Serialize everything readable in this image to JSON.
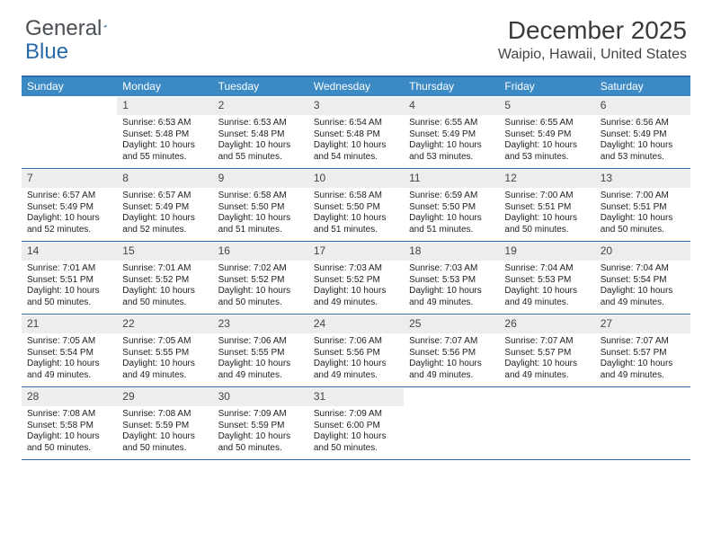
{
  "logo": {
    "text_general": "General",
    "text_blue": "Blue",
    "triangle_color": "#2d6ca8"
  },
  "title": {
    "month": "December 2025",
    "location": "Waipio, Hawaii, United States"
  },
  "colors": {
    "header_bg": "#3b8ac4",
    "border": "#2d6ca8",
    "daynum_bg": "#eceded",
    "text": "#333333",
    "background": "#ffffff"
  },
  "day_labels": [
    "Sunday",
    "Monday",
    "Tuesday",
    "Wednesday",
    "Thursday",
    "Friday",
    "Saturday"
  ],
  "weeks": [
    [
      {
        "empty": true
      },
      {
        "num": "1",
        "sunrise": "Sunrise: 6:53 AM",
        "sunset": "Sunset: 5:48 PM",
        "daylight1": "Daylight: 10 hours",
        "daylight2": "and 55 minutes."
      },
      {
        "num": "2",
        "sunrise": "Sunrise: 6:53 AM",
        "sunset": "Sunset: 5:48 PM",
        "daylight1": "Daylight: 10 hours",
        "daylight2": "and 55 minutes."
      },
      {
        "num": "3",
        "sunrise": "Sunrise: 6:54 AM",
        "sunset": "Sunset: 5:48 PM",
        "daylight1": "Daylight: 10 hours",
        "daylight2": "and 54 minutes."
      },
      {
        "num": "4",
        "sunrise": "Sunrise: 6:55 AM",
        "sunset": "Sunset: 5:49 PM",
        "daylight1": "Daylight: 10 hours",
        "daylight2": "and 53 minutes."
      },
      {
        "num": "5",
        "sunrise": "Sunrise: 6:55 AM",
        "sunset": "Sunset: 5:49 PM",
        "daylight1": "Daylight: 10 hours",
        "daylight2": "and 53 minutes."
      },
      {
        "num": "6",
        "sunrise": "Sunrise: 6:56 AM",
        "sunset": "Sunset: 5:49 PM",
        "daylight1": "Daylight: 10 hours",
        "daylight2": "and 53 minutes."
      }
    ],
    [
      {
        "num": "7",
        "sunrise": "Sunrise: 6:57 AM",
        "sunset": "Sunset: 5:49 PM",
        "daylight1": "Daylight: 10 hours",
        "daylight2": "and 52 minutes."
      },
      {
        "num": "8",
        "sunrise": "Sunrise: 6:57 AM",
        "sunset": "Sunset: 5:49 PM",
        "daylight1": "Daylight: 10 hours",
        "daylight2": "and 52 minutes."
      },
      {
        "num": "9",
        "sunrise": "Sunrise: 6:58 AM",
        "sunset": "Sunset: 5:50 PM",
        "daylight1": "Daylight: 10 hours",
        "daylight2": "and 51 minutes."
      },
      {
        "num": "10",
        "sunrise": "Sunrise: 6:58 AM",
        "sunset": "Sunset: 5:50 PM",
        "daylight1": "Daylight: 10 hours",
        "daylight2": "and 51 minutes."
      },
      {
        "num": "11",
        "sunrise": "Sunrise: 6:59 AM",
        "sunset": "Sunset: 5:50 PM",
        "daylight1": "Daylight: 10 hours",
        "daylight2": "and 51 minutes."
      },
      {
        "num": "12",
        "sunrise": "Sunrise: 7:00 AM",
        "sunset": "Sunset: 5:51 PM",
        "daylight1": "Daylight: 10 hours",
        "daylight2": "and 50 minutes."
      },
      {
        "num": "13",
        "sunrise": "Sunrise: 7:00 AM",
        "sunset": "Sunset: 5:51 PM",
        "daylight1": "Daylight: 10 hours",
        "daylight2": "and 50 minutes."
      }
    ],
    [
      {
        "num": "14",
        "sunrise": "Sunrise: 7:01 AM",
        "sunset": "Sunset: 5:51 PM",
        "daylight1": "Daylight: 10 hours",
        "daylight2": "and 50 minutes."
      },
      {
        "num": "15",
        "sunrise": "Sunrise: 7:01 AM",
        "sunset": "Sunset: 5:52 PM",
        "daylight1": "Daylight: 10 hours",
        "daylight2": "and 50 minutes."
      },
      {
        "num": "16",
        "sunrise": "Sunrise: 7:02 AM",
        "sunset": "Sunset: 5:52 PM",
        "daylight1": "Daylight: 10 hours",
        "daylight2": "and 50 minutes."
      },
      {
        "num": "17",
        "sunrise": "Sunrise: 7:03 AM",
        "sunset": "Sunset: 5:52 PM",
        "daylight1": "Daylight: 10 hours",
        "daylight2": "and 49 minutes."
      },
      {
        "num": "18",
        "sunrise": "Sunrise: 7:03 AM",
        "sunset": "Sunset: 5:53 PM",
        "daylight1": "Daylight: 10 hours",
        "daylight2": "and 49 minutes."
      },
      {
        "num": "19",
        "sunrise": "Sunrise: 7:04 AM",
        "sunset": "Sunset: 5:53 PM",
        "daylight1": "Daylight: 10 hours",
        "daylight2": "and 49 minutes."
      },
      {
        "num": "20",
        "sunrise": "Sunrise: 7:04 AM",
        "sunset": "Sunset: 5:54 PM",
        "daylight1": "Daylight: 10 hours",
        "daylight2": "and 49 minutes."
      }
    ],
    [
      {
        "num": "21",
        "sunrise": "Sunrise: 7:05 AM",
        "sunset": "Sunset: 5:54 PM",
        "daylight1": "Daylight: 10 hours",
        "daylight2": "and 49 minutes."
      },
      {
        "num": "22",
        "sunrise": "Sunrise: 7:05 AM",
        "sunset": "Sunset: 5:55 PM",
        "daylight1": "Daylight: 10 hours",
        "daylight2": "and 49 minutes."
      },
      {
        "num": "23",
        "sunrise": "Sunrise: 7:06 AM",
        "sunset": "Sunset: 5:55 PM",
        "daylight1": "Daylight: 10 hours",
        "daylight2": "and 49 minutes."
      },
      {
        "num": "24",
        "sunrise": "Sunrise: 7:06 AM",
        "sunset": "Sunset: 5:56 PM",
        "daylight1": "Daylight: 10 hours",
        "daylight2": "and 49 minutes."
      },
      {
        "num": "25",
        "sunrise": "Sunrise: 7:07 AM",
        "sunset": "Sunset: 5:56 PM",
        "daylight1": "Daylight: 10 hours",
        "daylight2": "and 49 minutes."
      },
      {
        "num": "26",
        "sunrise": "Sunrise: 7:07 AM",
        "sunset": "Sunset: 5:57 PM",
        "daylight1": "Daylight: 10 hours",
        "daylight2": "and 49 minutes."
      },
      {
        "num": "27",
        "sunrise": "Sunrise: 7:07 AM",
        "sunset": "Sunset: 5:57 PM",
        "daylight1": "Daylight: 10 hours",
        "daylight2": "and 49 minutes."
      }
    ],
    [
      {
        "num": "28",
        "sunrise": "Sunrise: 7:08 AM",
        "sunset": "Sunset: 5:58 PM",
        "daylight1": "Daylight: 10 hours",
        "daylight2": "and 50 minutes."
      },
      {
        "num": "29",
        "sunrise": "Sunrise: 7:08 AM",
        "sunset": "Sunset: 5:59 PM",
        "daylight1": "Daylight: 10 hours",
        "daylight2": "and 50 minutes."
      },
      {
        "num": "30",
        "sunrise": "Sunrise: 7:09 AM",
        "sunset": "Sunset: 5:59 PM",
        "daylight1": "Daylight: 10 hours",
        "daylight2": "and 50 minutes."
      },
      {
        "num": "31",
        "sunrise": "Sunrise: 7:09 AM",
        "sunset": "Sunset: 6:00 PM",
        "daylight1": "Daylight: 10 hours",
        "daylight2": "and 50 minutes."
      },
      {
        "empty": true
      },
      {
        "empty": true
      },
      {
        "empty": true
      }
    ]
  ]
}
